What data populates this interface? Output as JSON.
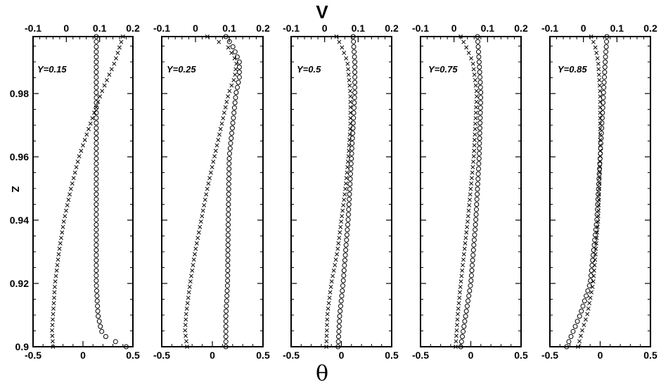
{
  "chart_data": {
    "type": "scatter",
    "top_axis_label": "V",
    "bottom_axis_label": "θ",
    "y_axis_label": "Z",
    "ylim": [
      0.9,
      0.998
    ],
    "y_ticks": [
      0.9,
      0.92,
      0.94,
      0.96,
      0.98
    ],
    "y_tick_labels": [
      "0.9",
      "0.92",
      "0.94",
      "0.96",
      "0.98"
    ],
    "top_xlim": [
      -0.1,
      0.2
    ],
    "top_ticks": [
      -0.1,
      0,
      0.1,
      0.2
    ],
    "top_tick_labels": [
      "-0.1",
      "0",
      "0.1",
      "0.2"
    ],
    "bottom_xlim": [
      -0.5,
      0.5
    ],
    "bottom_ticks": [
      -0.5,
      0,
      0.5
    ],
    "bottom_tick_labels": [
      "-0.5",
      "0",
      "0.5"
    ],
    "markers": {
      "V": "circle",
      "theta": "cross"
    },
    "panels": [
      {
        "label": "Y=0.15",
        "V": {
          "z": [
            0.9,
            0.901,
            0.902,
            0.903,
            0.905,
            0.91,
            0.92,
            0.94,
            0.96,
            0.975,
            0.98,
            0.99,
            0.998
          ],
          "values": [
            0.18,
            0.16,
            0.14,
            0.12,
            0.105,
            0.095,
            0.09,
            0.09,
            0.09,
            0.09,
            0.09,
            0.09,
            0.09
          ]
        },
        "theta": {
          "z": [
            0.9,
            0.905,
            0.91,
            0.92,
            0.93,
            0.94,
            0.95,
            0.96,
            0.97,
            0.98,
            0.99,
            0.998
          ],
          "values": [
            -0.3,
            -0.31,
            -0.3,
            -0.28,
            -0.24,
            -0.19,
            -0.12,
            -0.04,
            0.07,
            0.18,
            0.32,
            0.4
          ]
        }
      },
      {
        "label": "Y=0.25",
        "V": {
          "z": [
            0.9,
            0.91,
            0.92,
            0.94,
            0.96,
            0.97,
            0.98,
            0.985,
            0.99,
            0.995,
            0.998
          ],
          "values": [
            0.09,
            0.09,
            0.095,
            0.097,
            0.1,
            0.11,
            0.12,
            0.13,
            0.13,
            0.11,
            0.09
          ]
        },
        "theta": {
          "z": [
            0.9,
            0.905,
            0.91,
            0.92,
            0.93,
            0.94,
            0.95,
            0.96,
            0.97,
            0.98,
            0.985,
            0.99,
            0.995,
            0.998
          ],
          "values": [
            -0.25,
            -0.27,
            -0.26,
            -0.22,
            -0.17,
            -0.11,
            -0.05,
            0.02,
            0.09,
            0.16,
            0.22,
            0.24,
            0.15,
            -0.05
          ]
        }
      },
      {
        "label": "Y=0.5",
        "V": {
          "z": [
            0.9,
            0.91,
            0.92,
            0.94,
            0.96,
            0.97,
            0.98,
            0.99,
            0.998
          ],
          "values": [
            0.04,
            0.045,
            0.055,
            0.07,
            0.08,
            0.085,
            0.09,
            0.09,
            0.085
          ]
        },
        "theta": {
          "z": [
            0.9,
            0.91,
            0.92,
            0.93,
            0.94,
            0.95,
            0.96,
            0.97,
            0.98,
            0.99,
            0.995,
            0.998
          ],
          "values": [
            -0.15,
            -0.14,
            -0.1,
            -0.04,
            0.0,
            0.04,
            0.07,
            0.09,
            0.09,
            0.06,
            0.0,
            -0.05
          ]
        }
      },
      {
        "label": "Y=0.75",
        "V": {
          "z": [
            0.9,
            0.91,
            0.92,
            0.94,
            0.96,
            0.98,
            0.99,
            0.998
          ],
          "values": [
            0.02,
            0.035,
            0.05,
            0.065,
            0.075,
            0.08,
            0.075,
            0.07
          ]
        },
        "theta": {
          "z": [
            0.9,
            0.91,
            0.92,
            0.94,
            0.96,
            0.98,
            0.99,
            0.995,
            0.998
          ],
          "values": [
            -0.15,
            -0.13,
            -0.1,
            -0.03,
            0.03,
            0.06,
            0.02,
            -0.05,
            -0.1
          ]
        }
      },
      {
        "label": "Y=0.85",
        "V": {
          "z": [
            0.9,
            0.905,
            0.91,
            0.92,
            0.94,
            0.96,
            0.98,
            0.99,
            0.998
          ],
          "values": [
            -0.05,
            -0.03,
            -0.01,
            0.02,
            0.04,
            0.05,
            0.06,
            0.065,
            0.07
          ]
        },
        "theta": {
          "z": [
            0.9,
            0.905,
            0.91,
            0.92,
            0.94,
            0.96,
            0.98,
            0.99,
            0.995,
            0.998
          ],
          "values": [
            -0.22,
            -0.18,
            -0.13,
            -0.07,
            -0.02,
            0.0,
            0.0,
            -0.02,
            -0.05,
            -0.09
          ]
        }
      }
    ]
  }
}
